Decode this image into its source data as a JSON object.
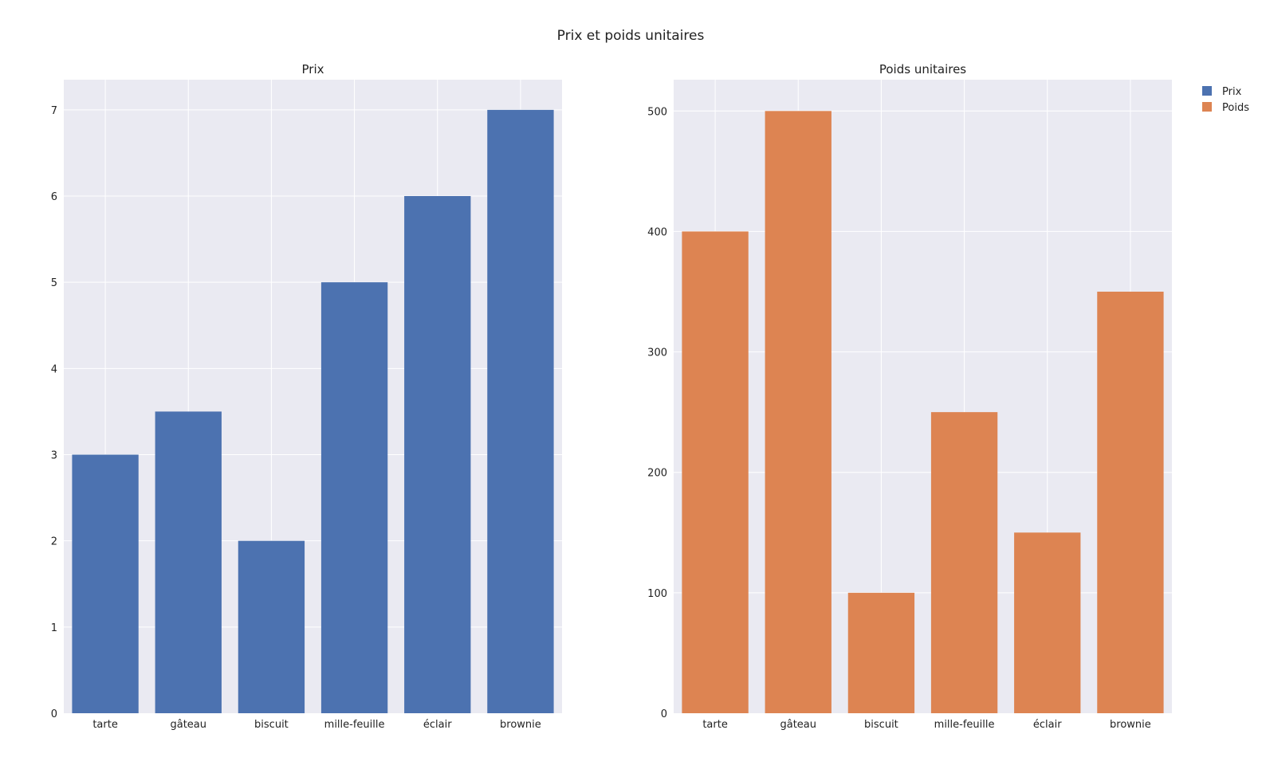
{
  "chart_data": {
    "title": "Prix et poids unitaires",
    "legend": {
      "placement": "top-right",
      "items": [
        {
          "label": "Prix",
          "color": "#4c72b0"
        },
        {
          "label": "Poids",
          "color": "#dd8452"
        }
      ]
    },
    "subplots": [
      {
        "type": "bar",
        "title": "Prix",
        "categories": [
          "tarte",
          "gâteau",
          "biscuit",
          "mille-feuille",
          "éclair",
          "brownie"
        ],
        "series": [
          {
            "name": "Prix",
            "values": [
              3,
              3.5,
              2,
              5,
              6,
              7
            ]
          }
        ],
        "color": "#4c72b0",
        "ylim": [
          0,
          7.35
        ],
        "yticks": [
          0,
          1,
          2,
          3,
          4,
          5,
          6,
          7
        ],
        "grid": true
      },
      {
        "type": "bar",
        "title": "Poids unitaires",
        "categories": [
          "tarte",
          "gâteau",
          "biscuit",
          "mille-feuille",
          "éclair",
          "brownie"
        ],
        "series": [
          {
            "name": "Poids",
            "values": [
              400,
              500,
              100,
              250,
              150,
              350
            ]
          }
        ],
        "color": "#dd8452",
        "ylim": [
          0,
          526
        ],
        "yticks": [
          0,
          100,
          200,
          300,
          400,
          500
        ],
        "grid": true
      }
    ]
  }
}
